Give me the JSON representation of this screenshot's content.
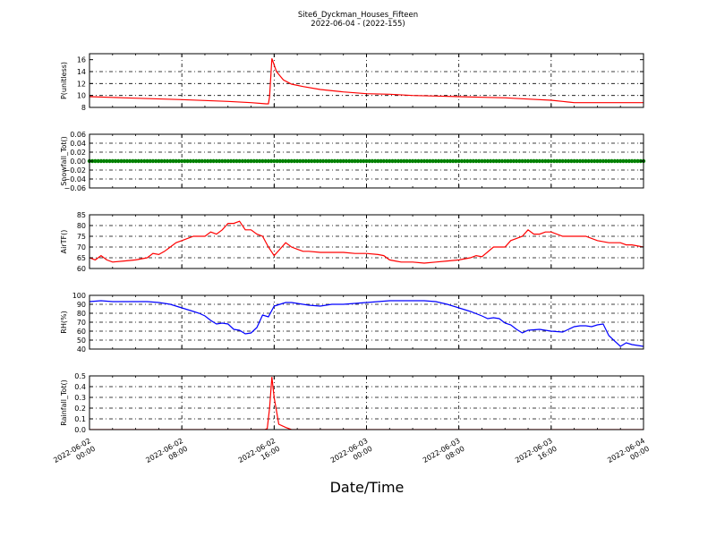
{
  "figure": {
    "title_line1": "Site6_Dyckman_Houses_Fifteen",
    "title_line2": "2022-06-04 - (2022-155)",
    "xlabel": "Date/Time",
    "x_tick_labels": [
      [
        "2022-06-02",
        "00:00"
      ],
      [
        "2022-06-02",
        "08:00"
      ],
      [
        "2022-06-02",
        "16:00"
      ],
      [
        "2022-06-03",
        "00:00"
      ],
      [
        "2022-06-03",
        "08:00"
      ],
      [
        "2022-06-03",
        "16:00"
      ],
      [
        "2022-06-04",
        "00:00"
      ]
    ]
  },
  "chart_data": [
    {
      "type": "line",
      "ylabel": "P(unitless)",
      "ylim": [
        8,
        17
      ],
      "yticks": [
        8,
        10,
        12,
        14,
        16
      ],
      "grid": true,
      "color": "#ff0000",
      "x_hours": [
        0,
        3,
        8,
        12,
        14,
        15.3,
        15.5,
        15.6,
        15.8,
        16.2,
        16.8,
        17.5,
        18.5,
        20,
        22,
        24,
        26,
        28,
        30,
        32,
        34,
        36,
        38,
        40,
        41,
        42,
        44,
        46,
        48
      ],
      "y": [
        9.8,
        9.6,
        9.3,
        9.0,
        8.8,
        8.6,
        8.6,
        9.8,
        16.2,
        14.0,
        12.6,
        11.9,
        11.5,
        11.0,
        10.6,
        10.3,
        10.2,
        10.0,
        9.9,
        9.8,
        9.7,
        9.6,
        9.4,
        9.2,
        9.0,
        8.8,
        8.8,
        8.8,
        8.8
      ]
    },
    {
      "type": "scatter",
      "ylabel": "Snowfall_Tot()",
      "ylim": [
        -0.06,
        0.06
      ],
      "yticks": [
        -0.06,
        -0.04,
        -0.02,
        0.0,
        0.02,
        0.04,
        0.06
      ],
      "ytick_labels": [
        "−0.06",
        "−0.04",
        "−0.02",
        "0.00",
        "0.02",
        "0.04",
        "0.06"
      ],
      "grid": true,
      "color": "#008000",
      "x_hours_range": [
        0,
        48
      ],
      "y_constant": 0.0
    },
    {
      "type": "line",
      "ylabel": "AirTF()",
      "ylim": [
        60,
        85
      ],
      "yticks": [
        60,
        65,
        70,
        75,
        80,
        85
      ],
      "grid": true,
      "color": "#ff0000",
      "x_hours": [
        0,
        0.5,
        1,
        1.5,
        2,
        3,
        4,
        5,
        5.5,
        6,
        6.5,
        7,
        7.5,
        8,
        9,
        10,
        10.5,
        11,
        11.5,
        12,
        12.5,
        13,
        13.5,
        14,
        14.5,
        15,
        15.5,
        16,
        16.5,
        17,
        17.5,
        18,
        18.5,
        19,
        20,
        21,
        22,
        23,
        24,
        25,
        25.5,
        26,
        26.5,
        27,
        28,
        29,
        30,
        31,
        32,
        33,
        33.5,
        34,
        35,
        36,
        36.5,
        37,
        37.5,
        38,
        38.5,
        39,
        39.5,
        40,
        41,
        42,
        43,
        44,
        45,
        46,
        46.5,
        47,
        48
      ],
      "y": [
        65,
        64,
        66,
        64,
        63,
        63.5,
        64,
        65,
        67,
        66.5,
        68,
        70,
        72,
        73,
        75,
        75,
        77,
        76,
        78,
        81,
        81,
        82,
        78,
        78,
        76,
        75,
        70,
        66,
        69,
        72,
        70,
        69,
        68,
        68,
        67.5,
        67.5,
        67.5,
        67,
        67,
        66.5,
        66,
        64,
        63.5,
        63,
        63,
        62.5,
        63,
        63.5,
        64,
        65,
        66,
        65.5,
        70,
        70,
        73,
        74,
        75,
        78,
        76,
        76,
        77,
        77,
        75,
        75,
        75,
        73,
        72,
        72,
        71,
        71,
        70
      ]
    },
    {
      "type": "line",
      "ylabel": "RH(%)",
      "ylim": [
        40,
        100
      ],
      "yticks": [
        40,
        50,
        60,
        70,
        80,
        90,
        100
      ],
      "grid": true,
      "color": "#0000ff",
      "x_hours": [
        0,
        1,
        2,
        3,
        4,
        5,
        6,
        7,
        8,
        9,
        9.5,
        10,
        10.5,
        11,
        11.5,
        12,
        12.5,
        13,
        13.5,
        14,
        14.5,
        15,
        15.5,
        16,
        16.5,
        17,
        17.5,
        18,
        19,
        20,
        21,
        22,
        23,
        24,
        25,
        26,
        27,
        28,
        29,
        30,
        31,
        32,
        33,
        34,
        34.5,
        35,
        35.5,
        36,
        36.5,
        37,
        37.5,
        38,
        39,
        40,
        41,
        41.5,
        42,
        42.5,
        43,
        43.5,
        44,
        44.5,
        45,
        46,
        46.5,
        47,
        48
      ],
      "y": [
        93,
        94,
        93,
        93,
        93,
        93,
        92,
        90,
        86,
        82,
        80,
        77,
        72,
        68,
        69,
        68,
        62,
        61,
        57,
        58,
        64,
        78,
        76,
        88,
        90,
        92,
        92,
        91,
        89,
        88,
        90,
        90,
        91,
        92,
        93,
        94,
        94,
        94,
        94,
        93,
        90,
        86,
        82,
        77,
        74,
        75,
        74,
        69,
        67,
        62,
        58,
        61,
        62,
        60,
        59,
        62,
        65,
        66,
        66,
        65,
        67,
        68,
        55,
        43,
        47,
        45,
        43
      ]
    },
    {
      "type": "line",
      "ylabel": "Rainfall_Tot()",
      "ylim": [
        0.0,
        0.5
      ],
      "yticks": [
        0.0,
        0.1,
        0.2,
        0.3,
        0.4,
        0.5
      ],
      "grid": true,
      "color": "#ff0000",
      "x_hours": [
        0,
        15.2,
        15.4,
        15.6,
        15.8,
        16.0,
        16.4,
        17.0,
        17.5,
        48
      ],
      "y": [
        0.0,
        0.0,
        0.01,
        0.2,
        0.49,
        0.3,
        0.05,
        0.02,
        0.0,
        0.0
      ]
    }
  ]
}
